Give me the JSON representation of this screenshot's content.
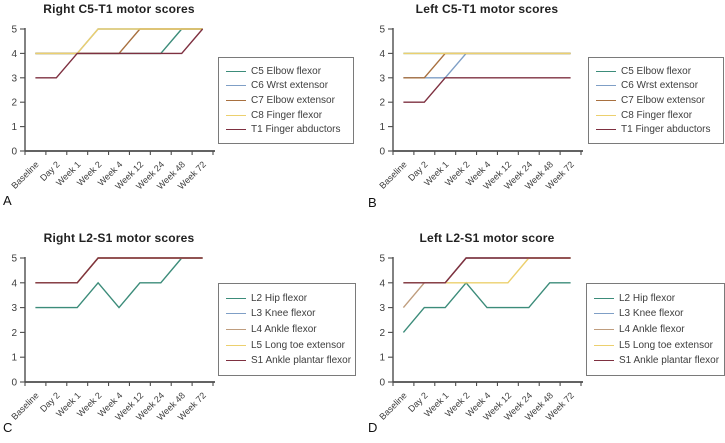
{
  "chart_data": [
    {
      "type": "line",
      "panel_letter": "A",
      "title": "Right C5-T1 motor scores",
      "x_categories": [
        "Baseline",
        "Day 2",
        "Week 1",
        "Week 2",
        "Week 4",
        "Week 12",
        "Week 24",
        "Week 48",
        "Week 72"
      ],
      "ylim": [
        0,
        5
      ],
      "yticks": [
        0,
        1,
        2,
        3,
        4,
        5
      ],
      "grid": false,
      "legend_position": "right",
      "series": [
        {
          "name": "C5 Elbow flexor",
          "color": "#3c8c7a",
          "values": [
            4,
            4,
            4,
            4,
            4,
            4,
            4,
            5,
            5
          ]
        },
        {
          "name": "C6 Wrst extensor",
          "color": "#7f9fc6",
          "values": [
            4,
            4,
            4,
            5,
            5,
            5,
            5,
            5,
            5
          ]
        },
        {
          "name": "C7 Elbow extensor",
          "color": "#a8703f",
          "values": [
            4,
            4,
            4,
            4,
            4,
            5,
            5,
            5,
            5
          ]
        },
        {
          "name": "C8 Finger flexor",
          "color": "#ecd06e",
          "values": [
            4,
            4,
            4,
            5,
            5,
            5,
            5,
            5,
            5
          ]
        },
        {
          "name": "T1 Finger abductors",
          "color": "#7e3040",
          "values": [
            3,
            3,
            4,
            4,
            4,
            4,
            4,
            4,
            5
          ]
        }
      ]
    },
    {
      "type": "line",
      "panel_letter": "B",
      "title": "Left C5-T1 motor scores",
      "x_categories": [
        "Baseline",
        "Day 2",
        "Week 1",
        "Week 2",
        "Week 4",
        "Week 12",
        "Week 24",
        "Week 48",
        "Week 72"
      ],
      "ylim": [
        0,
        5
      ],
      "yticks": [
        0,
        1,
        2,
        3,
        4,
        5
      ],
      "grid": false,
      "legend_position": "right",
      "series": [
        {
          "name": "C5 Elbow flexor",
          "color": "#3c8c7a",
          "values": [
            4,
            4,
            4,
            4,
            4,
            4,
            4,
            4,
            4
          ]
        },
        {
          "name": "C6 Wrst extensor",
          "color": "#7f9fc6",
          "values": [
            3,
            3,
            3,
            4,
            4,
            4,
            4,
            4,
            4
          ]
        },
        {
          "name": "C7 Elbow extensor",
          "color": "#a8703f",
          "values": [
            3,
            3,
            4,
            4,
            4,
            4,
            4,
            4,
            4
          ]
        },
        {
          "name": "C8 Finger flexor",
          "color": "#ecd06e",
          "values": [
            4,
            4,
            4,
            4,
            4,
            4,
            4,
            4,
            4
          ]
        },
        {
          "name": "T1 Finger abductors",
          "color": "#7e3040",
          "values": [
            2,
            2,
            3,
            3,
            3,
            3,
            3,
            3,
            3
          ]
        }
      ]
    },
    {
      "type": "line",
      "panel_letter": "C",
      "title": "Right L2-S1 motor scores",
      "x_categories": [
        "Baseline",
        "Day 2",
        "Week 1",
        "Week 2",
        "Week 4",
        "Week 12",
        "Week 24",
        "Week 48",
        "Week 72"
      ],
      "ylim": [
        0,
        5
      ],
      "yticks": [
        0,
        1,
        2,
        3,
        4,
        5
      ],
      "grid": false,
      "legend_position": "right",
      "series": [
        {
          "name": "L2 Hip flexor",
          "color": "#3c8c7a",
          "values": [
            3,
            3,
            3,
            4,
            3,
            4,
            4,
            5,
            5
          ]
        },
        {
          "name": "L3 Knee flexor",
          "color": "#7f9fc6",
          "values": [
            4,
            4,
            4,
            5,
            5,
            5,
            5,
            5,
            5
          ]
        },
        {
          "name": "L4 Ankle flexor",
          "color": "#bf9d7e",
          "values": [
            4,
            4,
            4,
            5,
            5,
            5,
            5,
            5,
            5
          ]
        },
        {
          "name": "L5 Long toe extensor",
          "color": "#ecd06e",
          "values": [
            4,
            4,
            4,
            5,
            5,
            5,
            5,
            5,
            5
          ]
        },
        {
          "name": "S1 Ankle plantar flexor",
          "color": "#7e3040",
          "values": [
            4,
            4,
            4,
            5,
            5,
            5,
            5,
            5,
            5
          ]
        }
      ]
    },
    {
      "type": "line",
      "panel_letter": "D",
      "title": "Left L2-S1 motor score",
      "x_categories": [
        "Baseline",
        "Day 2",
        "Week 1",
        "Week 2",
        "Week 4",
        "Week 12",
        "Week 24",
        "Week 48",
        "Week 72"
      ],
      "ylim": [
        0,
        5
      ],
      "yticks": [
        0,
        1,
        2,
        3,
        4,
        5
      ],
      "grid": false,
      "legend_position": "right",
      "series": [
        {
          "name": "L2 Hip flexor",
          "color": "#3c8c7a",
          "values": [
            2,
            3,
            3,
            4,
            3,
            3,
            3,
            4,
            4
          ]
        },
        {
          "name": "L3 Knee flexor",
          "color": "#7f9fc6",
          "values": [
            4,
            4,
            4,
            5,
            5,
            5,
            5,
            5,
            5
          ]
        },
        {
          "name": "L4 Ankle flexor",
          "color": "#bf9d7e",
          "values": [
            3,
            4,
            4,
            5,
            5,
            5,
            5,
            5,
            5
          ]
        },
        {
          "name": "L5 Long toe extensor",
          "color": "#ecd06e",
          "values": [
            4,
            4,
            4,
            4,
            4,
            4,
            5,
            5,
            5
          ]
        },
        {
          "name": "S1 Ankle plantar flexor",
          "color": "#7e3040",
          "values": [
            4,
            4,
            4,
            5,
            5,
            5,
            5,
            5,
            5
          ]
        }
      ]
    }
  ]
}
